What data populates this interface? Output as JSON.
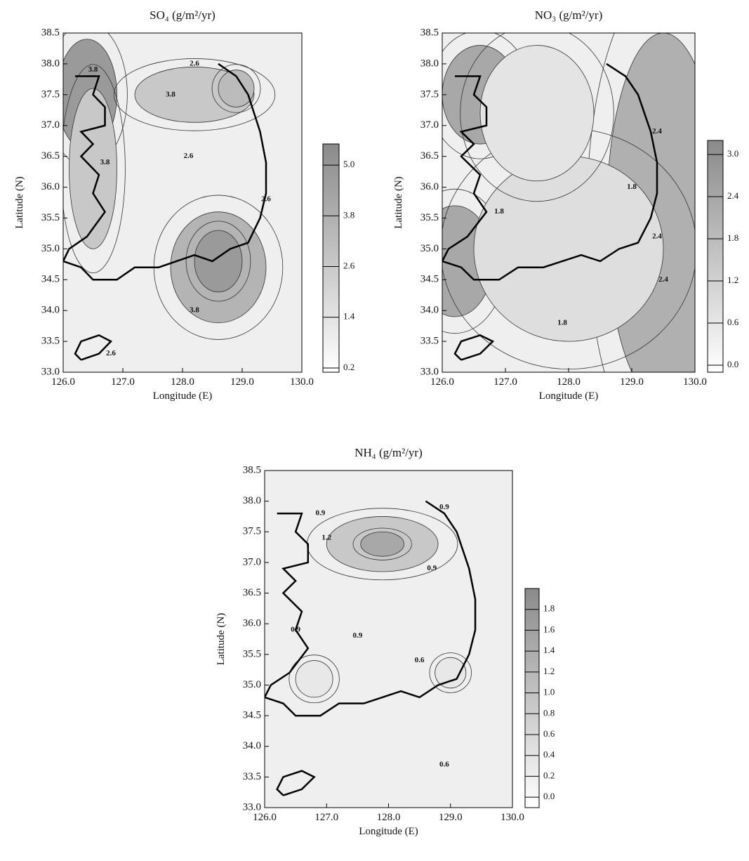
{
  "chart_data": [
    {
      "type": "contour",
      "title": "SO₄ (g/m²/yr)",
      "x_label": "Longitude (E)",
      "y_label": "Latitude (N)",
      "xlim": [
        126,
        130
      ],
      "ylim": [
        33,
        38.5
      ],
      "xticks": [
        {
          "value": 126,
          "label": "126.0"
        },
        {
          "value": 127,
          "label": "127.0"
        },
        {
          "value": 128,
          "label": "128.0"
        },
        {
          "value": 129,
          "label": "129.0"
        },
        {
          "value": 130,
          "label": "130.0"
        }
      ],
      "yticks": [
        {
          "value": 33,
          "label": "33.0"
        },
        33.5,
        {
          "value": 34,
          "label": "34.0"
        },
        34.5,
        {
          "value": 35,
          "label": "35.0"
        },
        35.5,
        {
          "value": 36,
          "label": "36.0"
        },
        36.5,
        {
          "value": 37,
          "label": "37.0"
        },
        37.5,
        {
          "value": 38,
          "label": "38.0"
        },
        38.5
      ],
      "clim": [
        0.1,
        5.5
      ],
      "cticks": [
        0.2,
        1.4,
        2.6,
        3.8,
        {
          "value": 5,
          "label": "5.0"
        }
      ],
      "contour_labels": [
        3.8,
        2.6,
        3.8,
        3.8,
        2.6,
        2.6,
        3.8,
        2.6
      ]
    },
    {
      "type": "contour",
      "title": "NO₃ (g/m²/yr)",
      "x_label": "Longitude (E)",
      "y_label": "Latitude (N)",
      "xlim": [
        126,
        130
      ],
      "ylim": [
        33,
        38.5
      ],
      "xticks": [
        {
          "value": 126,
          "label": "126.0"
        },
        {
          "value": 127,
          "label": "127.0"
        },
        {
          "value": 128,
          "label": "128.0"
        },
        {
          "value": 129,
          "label": "129.0"
        },
        {
          "value": 130,
          "label": "130.0"
        }
      ],
      "yticks": [
        {
          "value": 33,
          "label": "33.0"
        },
        33.5,
        {
          "value": 34,
          "label": "34.0"
        },
        34.5,
        {
          "value": 35,
          "label": "35.0"
        },
        35.5,
        {
          "value": 36,
          "label": "36.0"
        },
        36.5,
        {
          "value": 37,
          "label": "37.0"
        },
        37.5,
        {
          "value": 38,
          "label": "38.0"
        },
        38.5
      ],
      "clim": [
        -0.1,
        3.2
      ],
      "cticks": [
        {
          "value": 0,
          "label": "0.0"
        },
        0.6,
        1.2,
        1.8,
        2.4,
        {
          "value": 3,
          "label": "3.0"
        }
      ],
      "contour_labels": [
        2.4,
        1.8,
        1.8,
        2.4,
        2.4,
        1.8
      ]
    },
    {
      "type": "contour",
      "title": "NH₄ (g/m²/yr)",
      "x_label": "Longitude (E)",
      "y_label": "Latitude (N)",
      "xlim": [
        126,
        130
      ],
      "ylim": [
        33,
        38.5
      ],
      "xticks": [
        {
          "value": 126,
          "label": "126.0"
        },
        {
          "value": 127,
          "label": "127.0"
        },
        {
          "value": 128,
          "label": "128.0"
        },
        {
          "value": 129,
          "label": "129.0"
        },
        {
          "value": 130,
          "label": "130.0"
        }
      ],
      "yticks": [
        {
          "value": 33,
          "label": "33.0"
        },
        33.5,
        {
          "value": 34,
          "label": "34.0"
        },
        34.5,
        {
          "value": 35,
          "label": "35.0"
        },
        35.5,
        {
          "value": 36,
          "label": "36.0"
        },
        36.5,
        {
          "value": 37,
          "label": "37.0"
        },
        37.5,
        {
          "value": 38,
          "label": "38.0"
        },
        38.5
      ],
      "clim": [
        -0.1,
        2.0
      ],
      "cticks": [
        {
          "value": 0,
          "label": "0.0"
        },
        0.2,
        0.4,
        0.6,
        0.8,
        {
          "value": 1,
          "label": "1.0"
        },
        1.2,
        1.4,
        1.6,
        1.8
      ],
      "contour_labels": [
        0.9,
        0.9,
        1.2,
        0.9,
        0.9,
        0.9,
        0.6,
        0.6
      ]
    }
  ]
}
